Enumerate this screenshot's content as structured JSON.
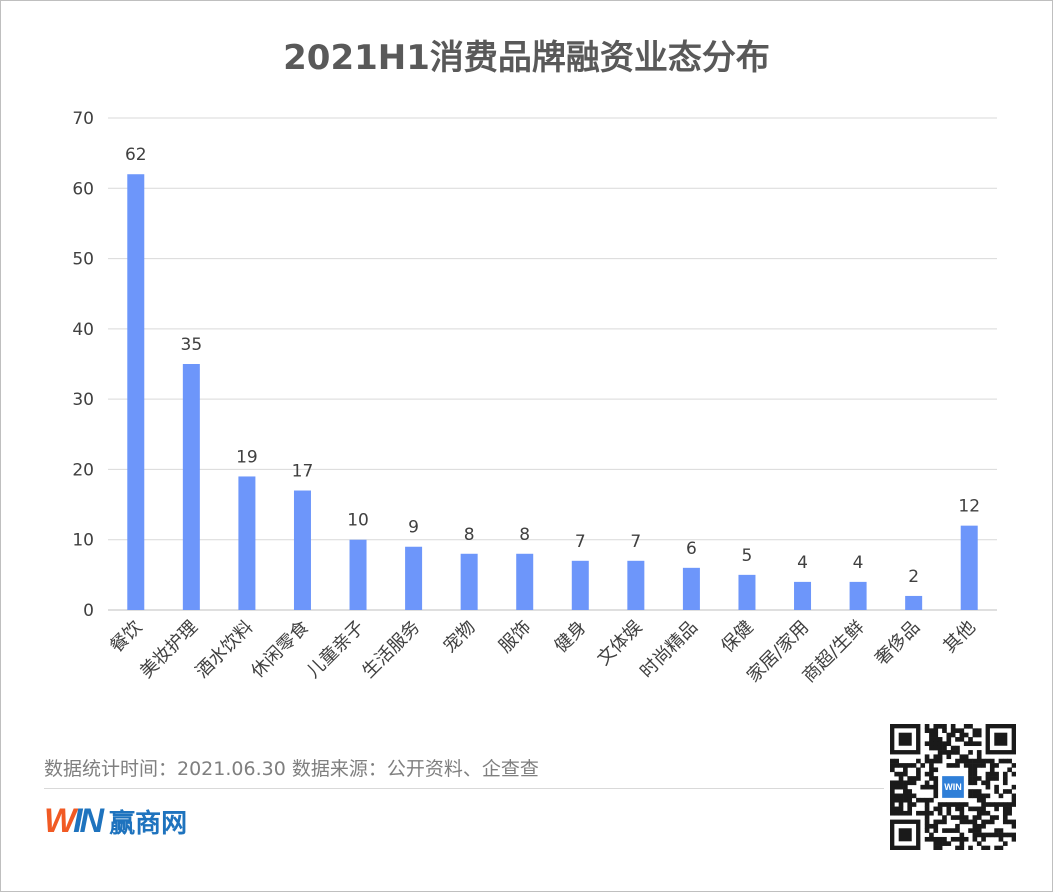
{
  "title": "2021H1消费品牌融资业态分布",
  "footer": {
    "note": "数据统计时间：2021.06.30  数据来源：公开资料、企查查",
    "brand_mark": "WIN",
    "brand_name": "赢商网",
    "qr_badge": "WIN"
  },
  "colors": {
    "bar": "#6d96fa",
    "grid": "#d9d9d9",
    "text": "#404040",
    "title": "#595959"
  },
  "chart_data": {
    "type": "bar",
    "title": "2021H1消费品牌融资业态分布",
    "categories": [
      "餐饮",
      "美妆护理",
      "酒水饮料",
      "休闲零食",
      "儿童亲子",
      "生活服务",
      "宠物",
      "服饰",
      "健身",
      "文体娱",
      "时尚精品",
      "保健",
      "家居/家用",
      "商超/生鲜",
      "奢侈品",
      "其他"
    ],
    "values": [
      62,
      35,
      19,
      17,
      10,
      9,
      8,
      8,
      7,
      7,
      6,
      5,
      4,
      4,
      2,
      12
    ],
    "xlabel": "",
    "ylabel": "",
    "ylim": [
      0,
      70
    ],
    "yticks": [
      0,
      10,
      20,
      30,
      40,
      50,
      60,
      70
    ],
    "grid": true,
    "legend": "none",
    "data_labels": true
  }
}
